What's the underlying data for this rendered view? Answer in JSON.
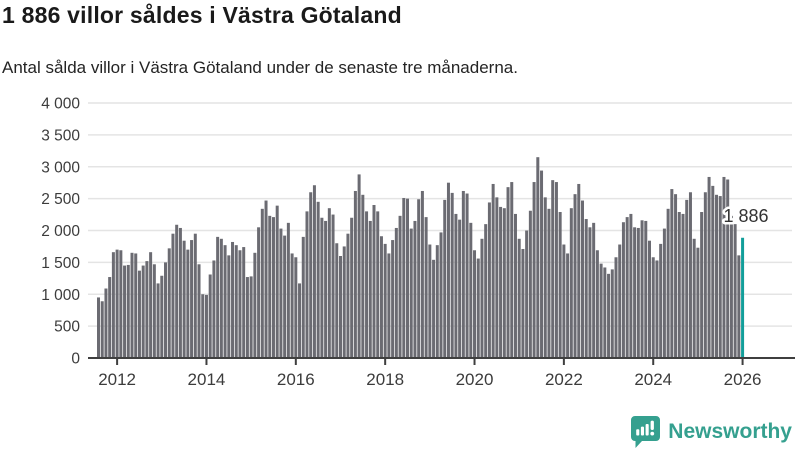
{
  "header": {
    "title": "1 886 villor såldes i Västra Götaland",
    "subtitle": "Antal sålda villor i Västra Götaland under de senaste tre månaderna."
  },
  "chart_data": {
    "type": "bar",
    "title": "1 886 villor såldes i Västra Götaland",
    "xlabel": "",
    "ylabel": "",
    "ylim": [
      0,
      4000
    ],
    "grid": "horizontal",
    "y_ticks": [
      0,
      500,
      1000,
      1500,
      2000,
      2500,
      3000,
      3500,
      4000
    ],
    "y_tick_labels": [
      "0",
      "500",
      "1 000",
      "1 500",
      "2 000",
      "2 500",
      "3 000",
      "3 500",
      "4 000"
    ],
    "x_tick_labels": [
      "2012",
      "2014",
      "2016",
      "2018",
      "2020",
      "2022",
      "2024",
      "2026"
    ],
    "months_before_first_tick": 5,
    "bar_color": "#6b6b72",
    "highlight_color": "#129e9a",
    "grid_color": "#e4e4e4",
    "axis_color": "#3f3f3f",
    "tick_label_color": "#3c3c3c",
    "values": [
      950,
      890,
      1090,
      1270,
      1660,
      1700,
      1690,
      1450,
      1460,
      1650,
      1640,
      1370,
      1450,
      1520,
      1660,
      1470,
      1170,
      1290,
      1500,
      1720,
      1950,
      2090,
      2040,
      1840,
      1700,
      1850,
      1950,
      1470,
      1000,
      990,
      1310,
      1530,
      1900,
      1870,
      1770,
      1610,
      1820,
      1770,
      1690,
      1740,
      1270,
      1280,
      1650,
      2050,
      2340,
      2470,
      2230,
      2210,
      2390,
      2030,
      1920,
      2120,
      1640,
      1580,
      1170,
      1900,
      2300,
      2600,
      2710,
      2450,
      2200,
      2150,
      2350,
      2250,
      1800,
      1600,
      1750,
      1950,
      2200,
      2620,
      2880,
      2560,
      2300,
      2150,
      2400,
      2300,
      1910,
      1790,
      1640,
      1850,
      2040,
      2230,
      2510,
      2500,
      2030,
      2150,
      2490,
      2620,
      2210,
      1780,
      1540,
      1770,
      1970,
      2480,
      2750,
      2590,
      2260,
      2170,
      2620,
      2580,
      2120,
      1690,
      1560,
      1870,
      2100,
      2440,
      2730,
      2520,
      2370,
      2350,
      2680,
      2760,
      2260,
      1870,
      1710,
      2000,
      2310,
      2760,
      3150,
      2940,
      2520,
      2340,
      2790,
      2760,
      2290,
      1780,
      1640,
      2350,
      2570,
      2730,
      2470,
      2180,
      2050,
      2120,
      1690,
      1480,
      1420,
      1320,
      1390,
      1580,
      1780,
      2130,
      2210,
      2260,
      2050,
      2040,
      2160,
      2150,
      1840,
      1580,
      1530,
      1790,
      2030,
      2340,
      2650,
      2570,
      2290,
      2260,
      2480,
      2600,
      1870,
      1730,
      2290,
      2600,
      2840,
      2700,
      2560,
      2540,
      2840,
      2800,
      2230,
      2100,
      1610,
      1886
    ],
    "highlight": {
      "index": 173,
      "value": 1886,
      "label": "1 886"
    }
  },
  "footer": {
    "brand": "Newsworthy"
  }
}
